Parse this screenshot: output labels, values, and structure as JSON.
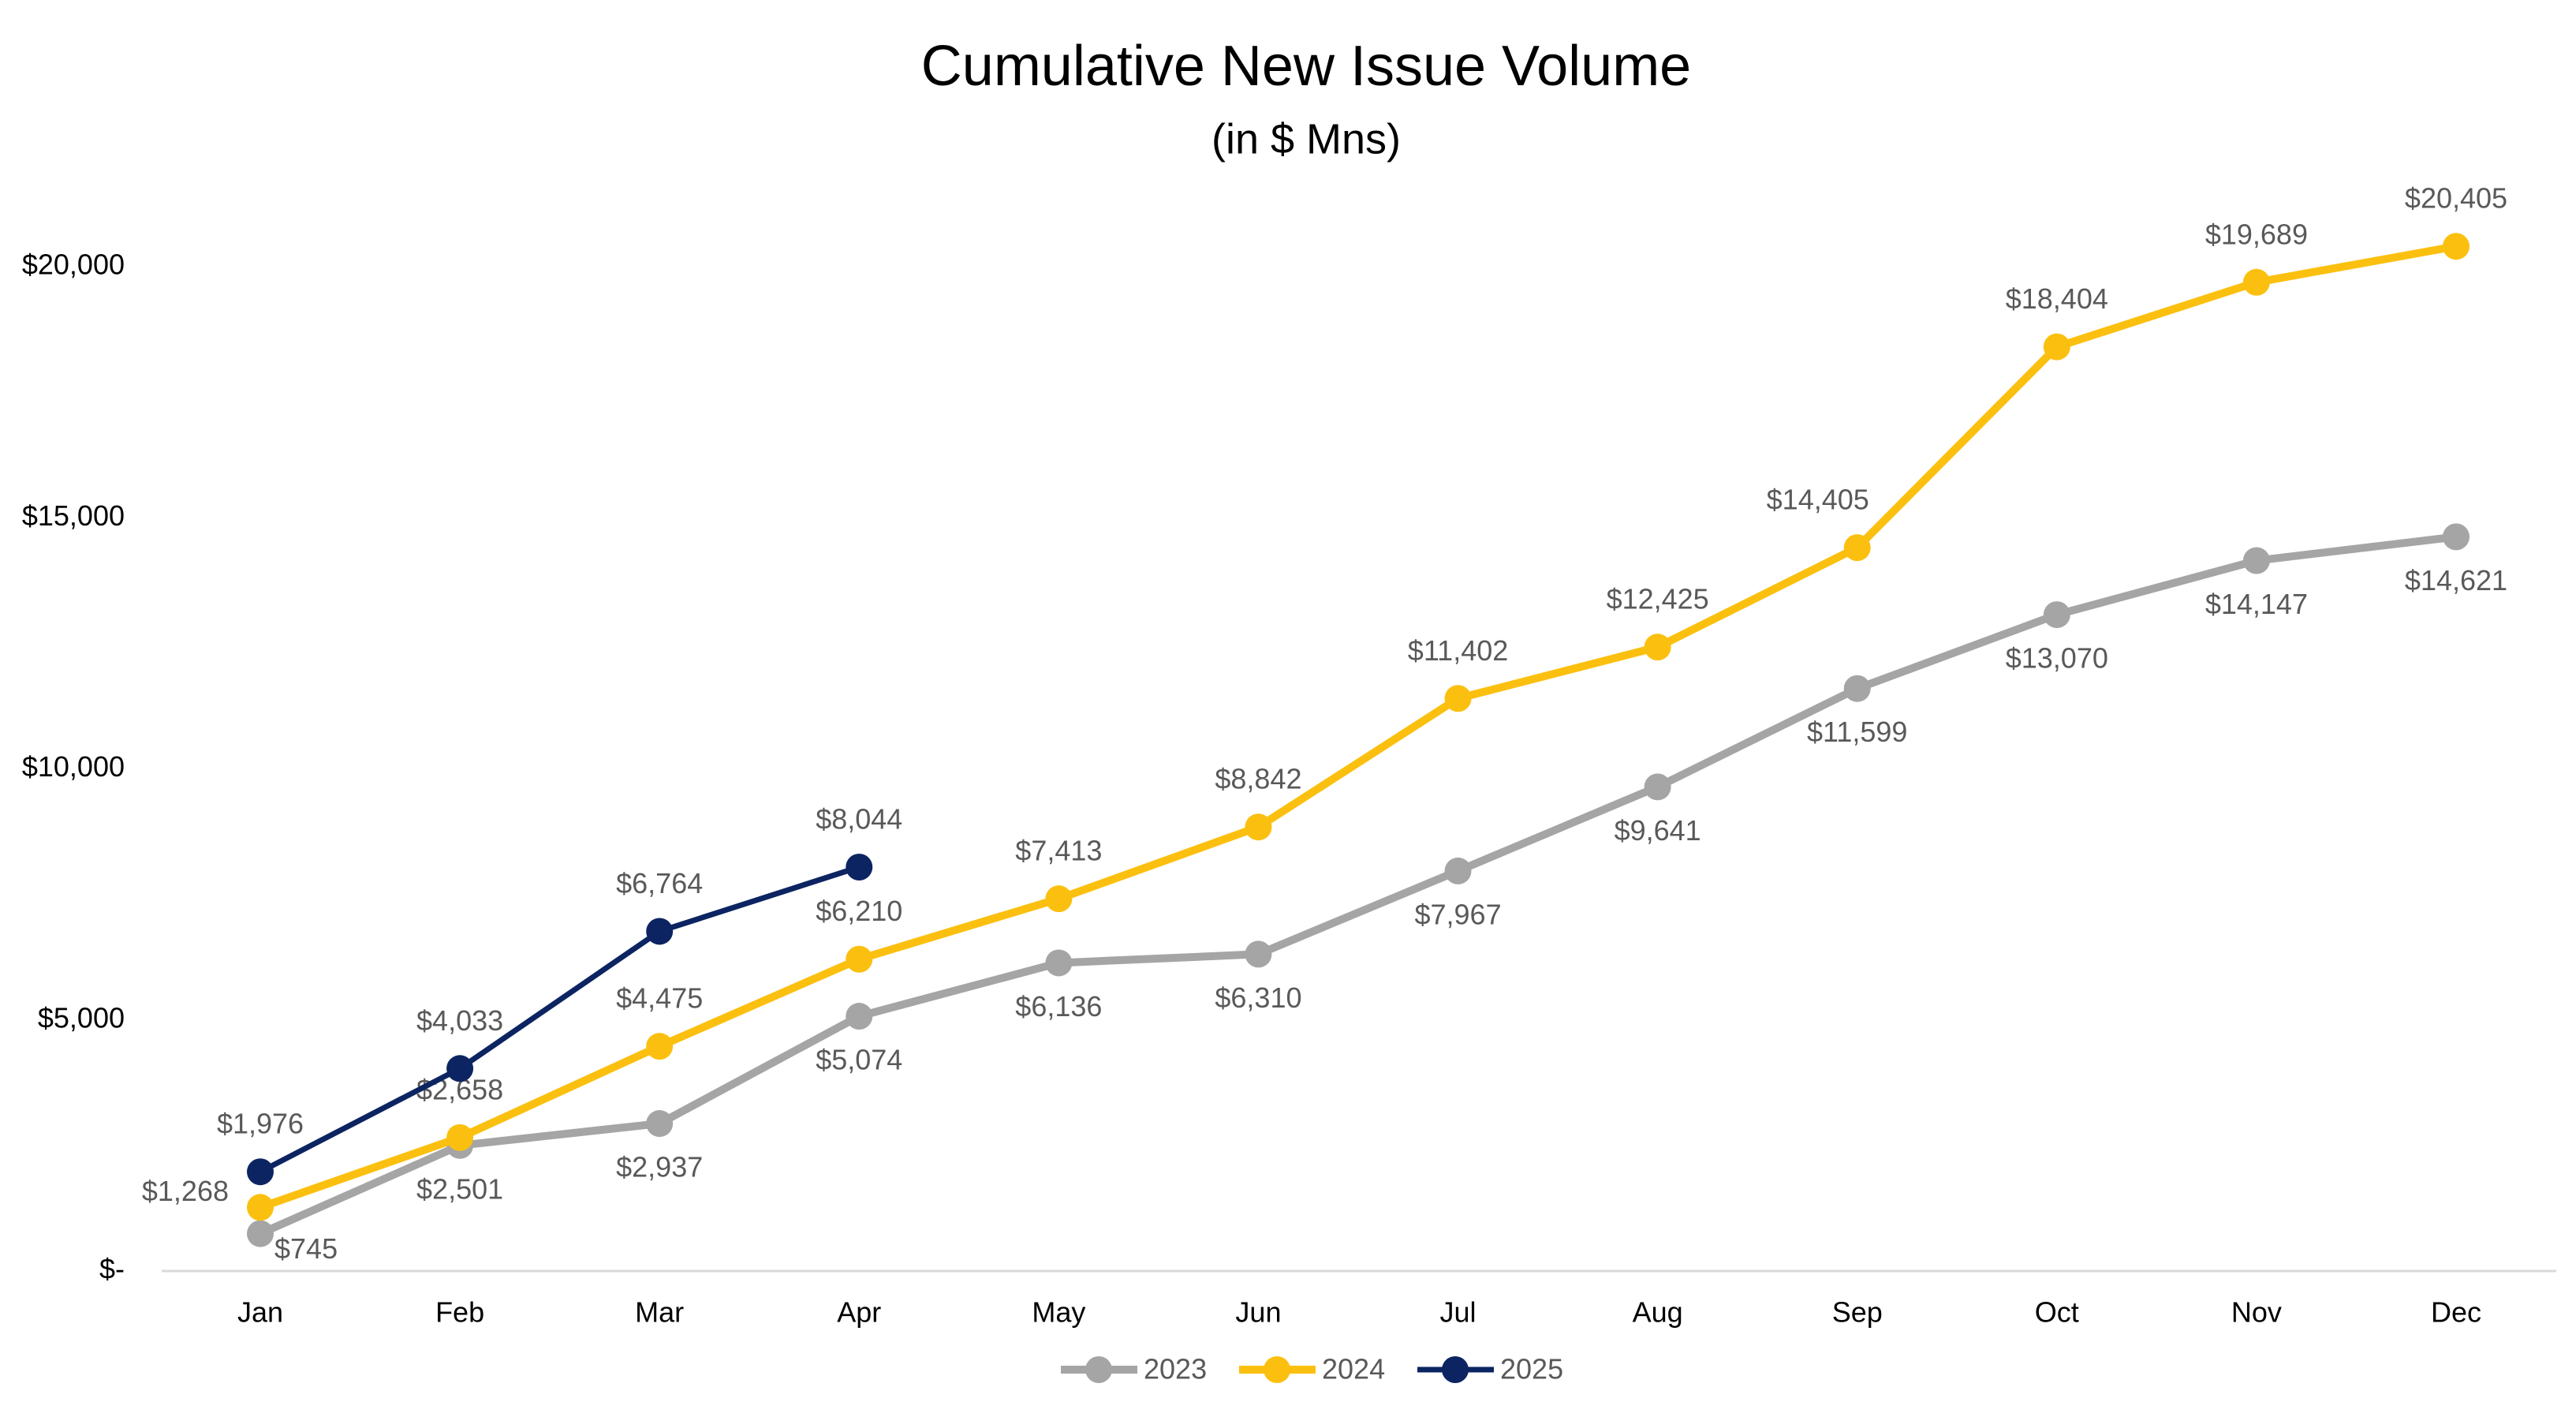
{
  "chart_data": {
    "type": "line",
    "title": "Cumulative New Issue Volume",
    "subtitle": "(in $ Mns)",
    "categories": [
      "Jan",
      "Feb",
      "Mar",
      "Apr",
      "May",
      "Jun",
      "Jul",
      "Aug",
      "Sep",
      "Oct",
      "Nov",
      "Dec"
    ],
    "series": [
      {
        "name": "2023",
        "color": "#a5a5a5",
        "values": [
          745,
          2501,
          2937,
          5074,
          6136,
          6310,
          7967,
          9641,
          11599,
          13070,
          14147,
          14621
        ],
        "value_labels": [
          "$745",
          "$2,501",
          "$2,937",
          "$5,074",
          "$6,136",
          "$6,310",
          "$7,967",
          "$9,641",
          "$11,599",
          "$13,070",
          "$14,147",
          "$14,621"
        ]
      },
      {
        "name": "2024",
        "color": "#fbc00f",
        "values": [
          1268,
          2658,
          4475,
          6210,
          7413,
          8842,
          11402,
          12425,
          14405,
          18404,
          19689,
          20405
        ],
        "value_labels": [
          "$1,268",
          "$2,658",
          "$4,475",
          "$6,210",
          "$7,413",
          "$8,842",
          "$11,402",
          "$12,425",
          "$14,405",
          "$18,404",
          "$19,689",
          "$20,405"
        ]
      },
      {
        "name": "2025",
        "color": "#0c2461",
        "values": [
          1976,
          4033,
          6764,
          8044,
          null,
          null,
          null,
          null,
          null,
          null,
          null,
          null
        ],
        "value_labels": [
          "$1,976",
          "$4,033",
          "$6,764",
          "$8,044",
          null,
          null,
          null,
          null,
          null,
          null,
          null,
          null
        ]
      }
    ],
    "ylim": [
      0,
      20000
    ],
    "yticks": [
      {
        "value": 0,
        "label": "$-"
      },
      {
        "value": 5000,
        "label": "$5,000"
      },
      {
        "value": 10000,
        "label": "$10,000"
      },
      {
        "value": 15000,
        "label": "$15,000"
      },
      {
        "value": 20000,
        "label": "$20,000"
      }
    ],
    "legend": "bottom"
  }
}
